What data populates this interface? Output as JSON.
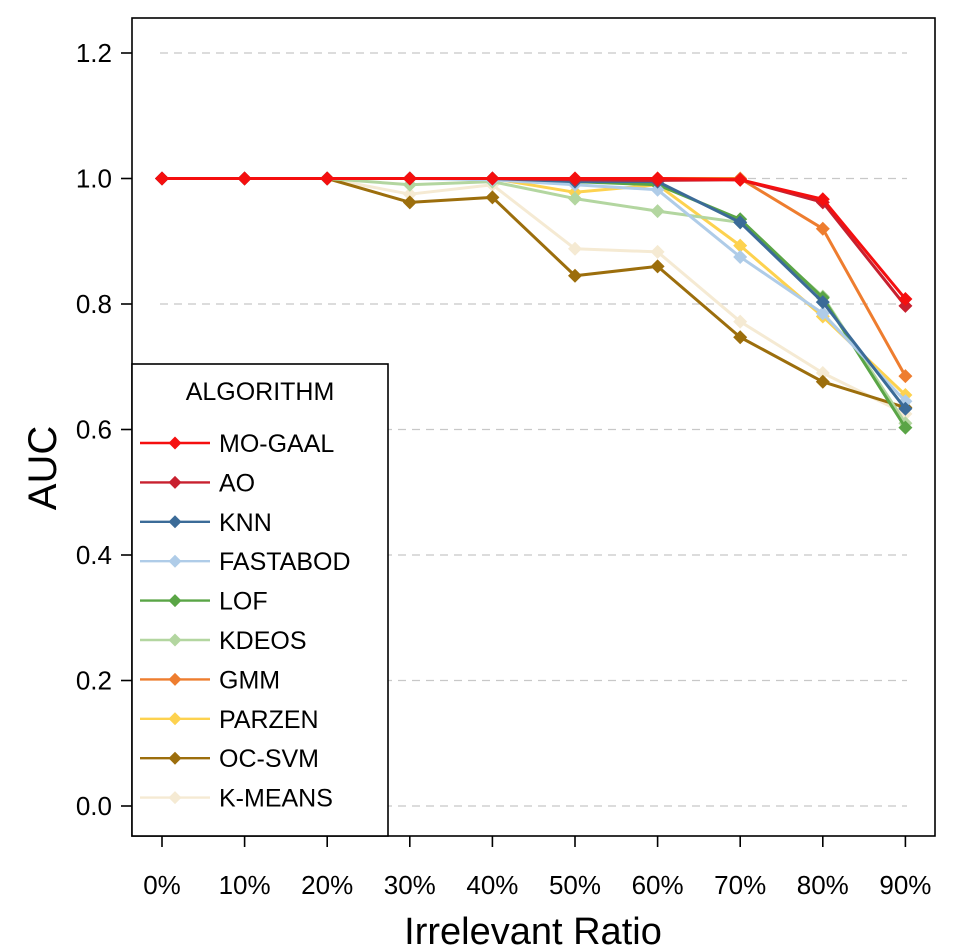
{
  "chart_data": {
    "type": "line",
    "title": "",
    "xlabel": "Irrelevant Ratio",
    "ylabel": "AUC",
    "categories": [
      "0%",
      "10%",
      "20%",
      "30%",
      "40%",
      "50%",
      "60%",
      "70%",
      "80%",
      "90%"
    ],
    "ylim": [
      -0.05,
      1.23
    ],
    "yticks": [
      0.0,
      0.2,
      0.4,
      0.6,
      0.8,
      1.0,
      1.2
    ],
    "ytick_labels": [
      "0.0",
      "0.2",
      "0.4",
      "0.6",
      "0.8",
      "1.0",
      "1.2"
    ],
    "grid": "horizontal dashed",
    "legend": {
      "title": "ALGORITHM",
      "position": "bottom-left"
    },
    "series": [
      {
        "name": "K-MEANS",
        "color": "#f5ead3",
        "values": [
          1.0,
          1.0,
          1.0,
          0.975,
          0.99,
          0.888,
          0.883,
          0.772,
          0.69,
          0.625
        ]
      },
      {
        "name": "OC-SVM",
        "color": "#9c6e0c",
        "values": [
          1.0,
          1.0,
          1.0,
          0.962,
          0.97,
          0.845,
          0.86,
          0.747,
          0.676,
          0.635
        ]
      },
      {
        "name": "PARZEN",
        "color": "#fdd24f",
        "values": [
          1.0,
          1.0,
          1.0,
          1.0,
          1.0,
          0.978,
          0.99,
          0.893,
          0.78,
          0.655
        ]
      },
      {
        "name": "GMM",
        "color": "#ee7d2f",
        "values": [
          1.0,
          1.0,
          1.0,
          1.0,
          1.0,
          1.0,
          1.0,
          1.0,
          0.92,
          0.685
        ]
      },
      {
        "name": "KDEOS",
        "color": "#b3d6a0",
        "values": [
          1.0,
          1.0,
          1.0,
          0.99,
          0.995,
          0.968,
          0.948,
          0.93,
          0.812,
          0.61
        ]
      },
      {
        "name": "LOF",
        "color": "#5aa546",
        "values": [
          1.0,
          1.0,
          1.0,
          1.0,
          1.0,
          0.995,
          0.99,
          0.935,
          0.81,
          0.603
        ]
      },
      {
        "name": "FASTABOD",
        "color": "#afcce8",
        "values": [
          1.0,
          1.0,
          1.0,
          1.0,
          0.998,
          0.99,
          0.982,
          0.875,
          0.785,
          0.645
        ]
      },
      {
        "name": "KNN",
        "color": "#3b6b98",
        "values": [
          1.0,
          1.0,
          1.0,
          1.0,
          1.0,
          0.995,
          0.995,
          0.93,
          0.803,
          0.633
        ]
      },
      {
        "name": "AO",
        "color": "#c8202f",
        "values": [
          1.0,
          1.0,
          1.0,
          1.0,
          1.0,
          0.998,
          0.997,
          0.998,
          0.962,
          0.797
        ]
      },
      {
        "name": "MO-GAAL",
        "color": "#f50f0f",
        "values": [
          1.0,
          1.0,
          1.0,
          1.0,
          1.0,
          1.0,
          1.0,
          0.998,
          0.967,
          0.808
        ]
      }
    ],
    "legend_order": [
      "MO-GAAL",
      "AO",
      "KNN",
      "FASTABOD",
      "LOF",
      "KDEOS",
      "GMM",
      "PARZEN",
      "OC-SVM",
      "K-MEANS"
    ]
  }
}
